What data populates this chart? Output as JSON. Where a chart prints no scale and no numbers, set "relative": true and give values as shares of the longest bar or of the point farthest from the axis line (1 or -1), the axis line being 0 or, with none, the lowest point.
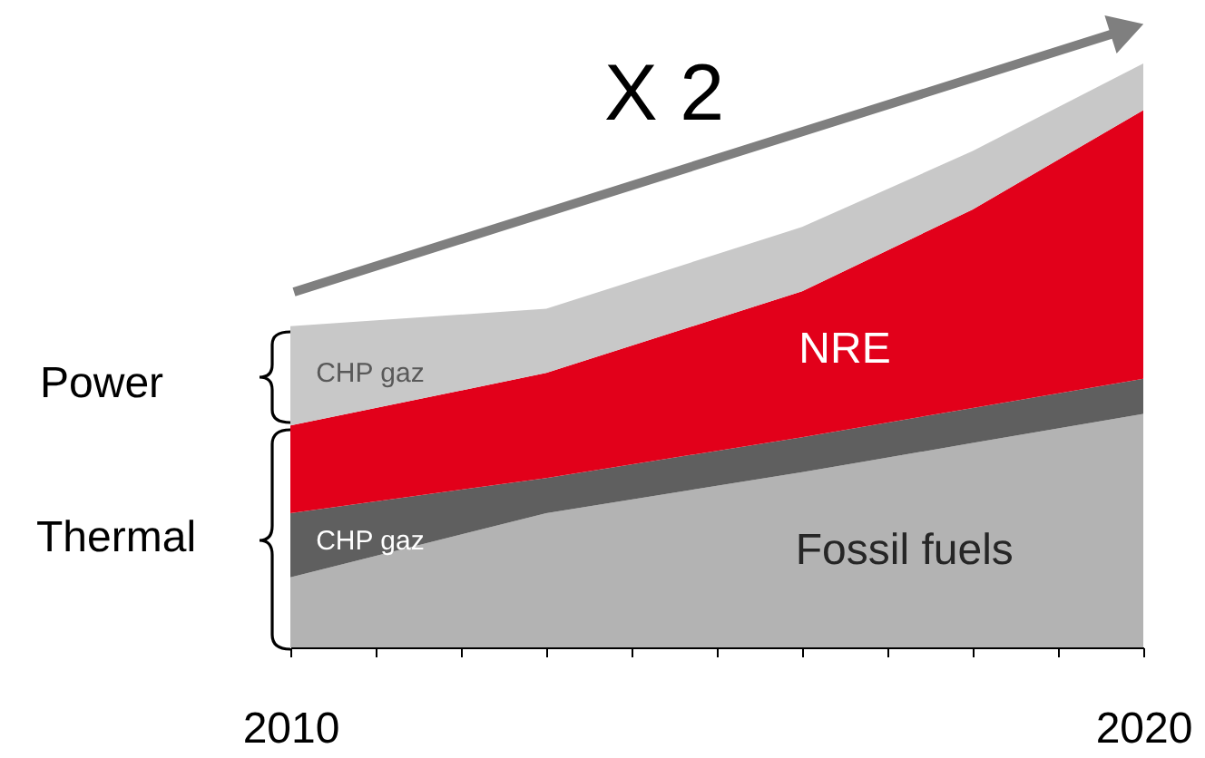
{
  "chart_data": {
    "type": "area",
    "stacked": true,
    "relative": true,
    "x": [
      2010,
      2013,
      2016,
      2018,
      2020
    ],
    "xlim": [
      2010,
      2020
    ],
    "xticks": [
      2010,
      {
        "value": 2011,
        "label": null
      },
      {
        "value": 2012,
        "label": null
      },
      {
        "value": 2013,
        "label": null
      },
      {
        "value": 2014,
        "label": null
      },
      {
        "value": 2015,
        "label": null
      },
      {
        "value": 2016,
        "label": null
      },
      {
        "value": 2017,
        "label": null
      },
      {
        "value": 2018,
        "label": null
      },
      {
        "value": 2019,
        "label": null
      },
      2020
    ],
    "series": [
      {
        "name": "Fossil fuels",
        "color": "#b3b3b3",
        "values": [
          0.12,
          0.23,
          0.3,
          0.35,
          0.4
        ]
      },
      {
        "name": "CHP gaz",
        "color": "#5f5f5f",
        "values": [
          0.11,
          0.06,
          0.06,
          0.06,
          0.06
        ]
      },
      {
        "name": "NRE",
        "color": "#e2001a",
        "values": [
          0.15,
          0.18,
          0.25,
          0.34,
          0.46
        ]
      },
      {
        "name": "CHP gaz",
        "color": "#c8c8c8",
        "values": [
          0.17,
          0.11,
          0.11,
          0.1,
          0.08
        ]
      }
    ],
    "annotations": [
      "X 2",
      "Power",
      "Thermal"
    ]
  }
}
